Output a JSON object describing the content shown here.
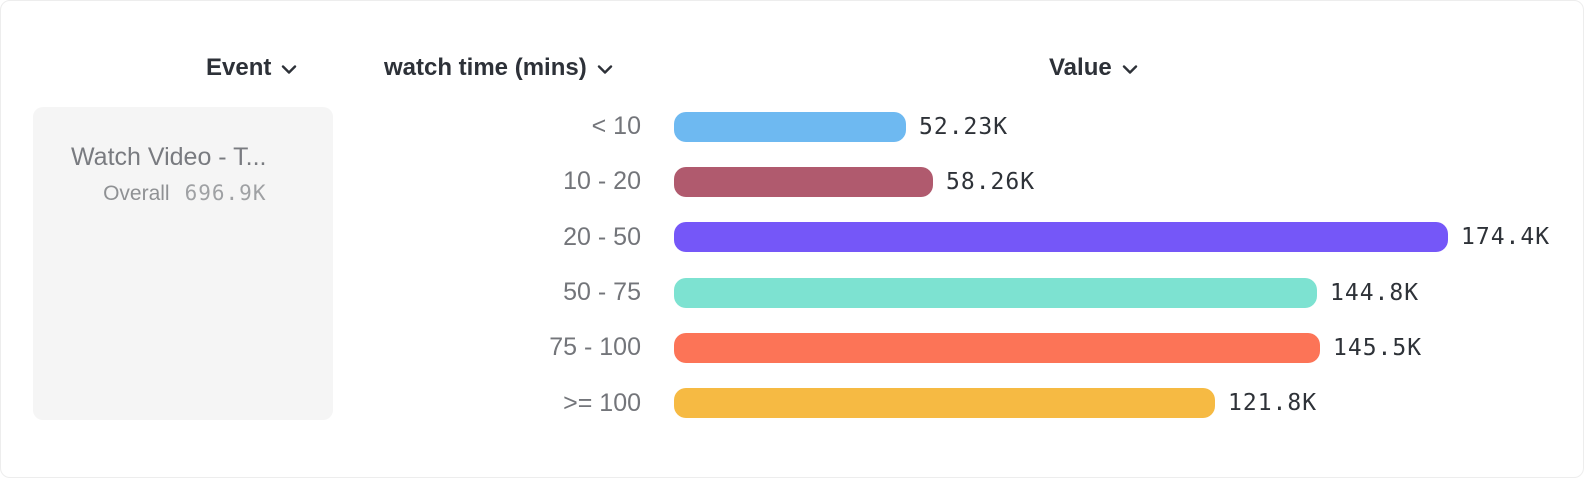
{
  "header": {
    "columns": [
      {
        "label": "Event"
      },
      {
        "label": "watch time (mins)"
      },
      {
        "label": "Value"
      }
    ]
  },
  "event_card": {
    "title": "Watch Video - T...",
    "overall_label": "Overall",
    "overall_value": "696.9K"
  },
  "icons": {
    "chevron_down": "chevron-down-icon"
  },
  "chart_data": {
    "type": "bar",
    "orientation": "horizontal",
    "title": "",
    "xlabel": "Value",
    "ylabel": "watch time (mins)",
    "series_name": "Watch Video - T...",
    "total_label": "Overall",
    "total_value": "696.9K",
    "categories": [
      "< 10",
      "10 - 20",
      "20 - 50",
      "50 - 75",
      "75 - 100",
      ">= 100"
    ],
    "values": [
      52230,
      58260,
      174400,
      144800,
      145500,
      121800
    ],
    "value_labels": [
      "52.23K",
      "58.26K",
      "174.4K",
      "144.8K",
      "145.5K",
      "121.8K"
    ],
    "bar_colors": [
      "#6eb9f1",
      "#b05a6e",
      "#7557f8",
      "#7de2d1",
      "#fc7457",
      "#f6ba43"
    ],
    "xlim": [
      0,
      174400
    ],
    "grid": false,
    "legend": false
  }
}
